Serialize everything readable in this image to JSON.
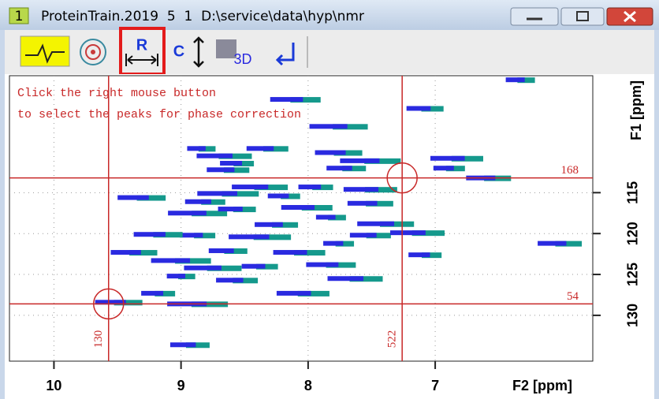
{
  "window": {
    "badge": "1",
    "title": "ProteinTrain.2019  5  1  D:\\service\\data\\hyp\\nmr"
  },
  "toolbar": {
    "range_button": "R",
    "contour_button": "C",
    "view_button": "3D"
  },
  "spectrum": {
    "message": [
      "Click the right mouse button",
      "to select the peaks for phase correction"
    ],
    "xlabel": "F2 [ppm]",
    "ylabel": "F1 [ppm]",
    "xlim": [
      10.35,
      5.76
    ],
    "ylim": [
      100.7,
      135.6
    ],
    "xticks": [
      10,
      9,
      8,
      7
    ],
    "yticks": [
      115,
      120,
      125,
      130
    ],
    "grid": true,
    "peak_color": "#2a2ae0",
    "tail_color": "#15998c",
    "cursor_color": "#c82828",
    "h_cursors": [
      {
        "position": 113.2,
        "label": "168"
      },
      {
        "position": 128.6,
        "label": "54"
      }
    ],
    "v_cursors": [
      {
        "position": 9.57,
        "label": "130"
      },
      {
        "position": 7.26,
        "label": "522"
      }
    ],
    "peaks": [
      {
        "x": 8.84,
        "y": 109.6
      },
      {
        "x": 8.32,
        "y": 109.6
      },
      {
        "x": 8.66,
        "y": 110.5
      },
      {
        "x": 8.56,
        "y": 111.4
      },
      {
        "x": 7.76,
        "y": 110.1
      },
      {
        "x": 7.51,
        "y": 111.1
      },
      {
        "x": 7.7,
        "y": 112.0
      },
      {
        "x": 6.83,
        "y": 110.8
      },
      {
        "x": 6.89,
        "y": 112.0
      },
      {
        "x": 6.58,
        "y": 113.2
      },
      {
        "x": 7.76,
        "y": 106.9
      },
      {
        "x": 7.08,
        "y": 104.7
      },
      {
        "x": 8.1,
        "y": 103.6
      },
      {
        "x": 6.33,
        "y": 101.2
      },
      {
        "x": 8.63,
        "y": 112.2
      },
      {
        "x": 8.38,
        "y": 114.3
      },
      {
        "x": 7.94,
        "y": 114.3
      },
      {
        "x": 9.31,
        "y": 115.6
      },
      {
        "x": 8.63,
        "y": 115.1
      },
      {
        "x": 8.81,
        "y": 116.1
      },
      {
        "x": 7.51,
        "y": 114.6
      },
      {
        "x": 8.19,
        "y": 115.4
      },
      {
        "x": 7.51,
        "y": 116.3
      },
      {
        "x": 8.87,
        "y": 117.5
      },
      {
        "x": 8.56,
        "y": 117.0
      },
      {
        "x": 8.01,
        "y": 116.8
      },
      {
        "x": 7.82,
        "y": 118.0
      },
      {
        "x": 8.25,
        "y": 118.9
      },
      {
        "x": 7.39,
        "y": 118.8
      },
      {
        "x": 8.87,
        "y": 120.2
      },
      {
        "x": 9.18,
        "y": 120.1
      },
      {
        "x": 8.38,
        "y": 120.4
      },
      {
        "x": 7.51,
        "y": 120.2
      },
      {
        "x": 7.14,
        "y": 119.9
      },
      {
        "x": 7.08,
        "y": 122.6
      },
      {
        "x": 9.37,
        "y": 122.3
      },
      {
        "x": 9.0,
        "y": 123.3
      },
      {
        "x": 8.63,
        "y": 122.1
      },
      {
        "x": 8.07,
        "y": 122.3
      },
      {
        "x": 7.76,
        "y": 121.2
      },
      {
        "x": 6.02,
        "y": 121.2
      },
      {
        "x": 8.75,
        "y": 124.2
      },
      {
        "x": 8.38,
        "y": 124.0
      },
      {
        "x": 7.82,
        "y": 123.8
      },
      {
        "x": 9.0,
        "y": 125.2
      },
      {
        "x": 8.56,
        "y": 125.7
      },
      {
        "x": 7.63,
        "y": 125.5
      },
      {
        "x": 9.18,
        "y": 127.3
      },
      {
        "x": 9.49,
        "y": 128.4
      },
      {
        "x": 8.87,
        "y": 128.6
      },
      {
        "x": 8.93,
        "y": 133.6
      },
      {
        "x": 8.04,
        "y": 127.3
      }
    ]
  }
}
